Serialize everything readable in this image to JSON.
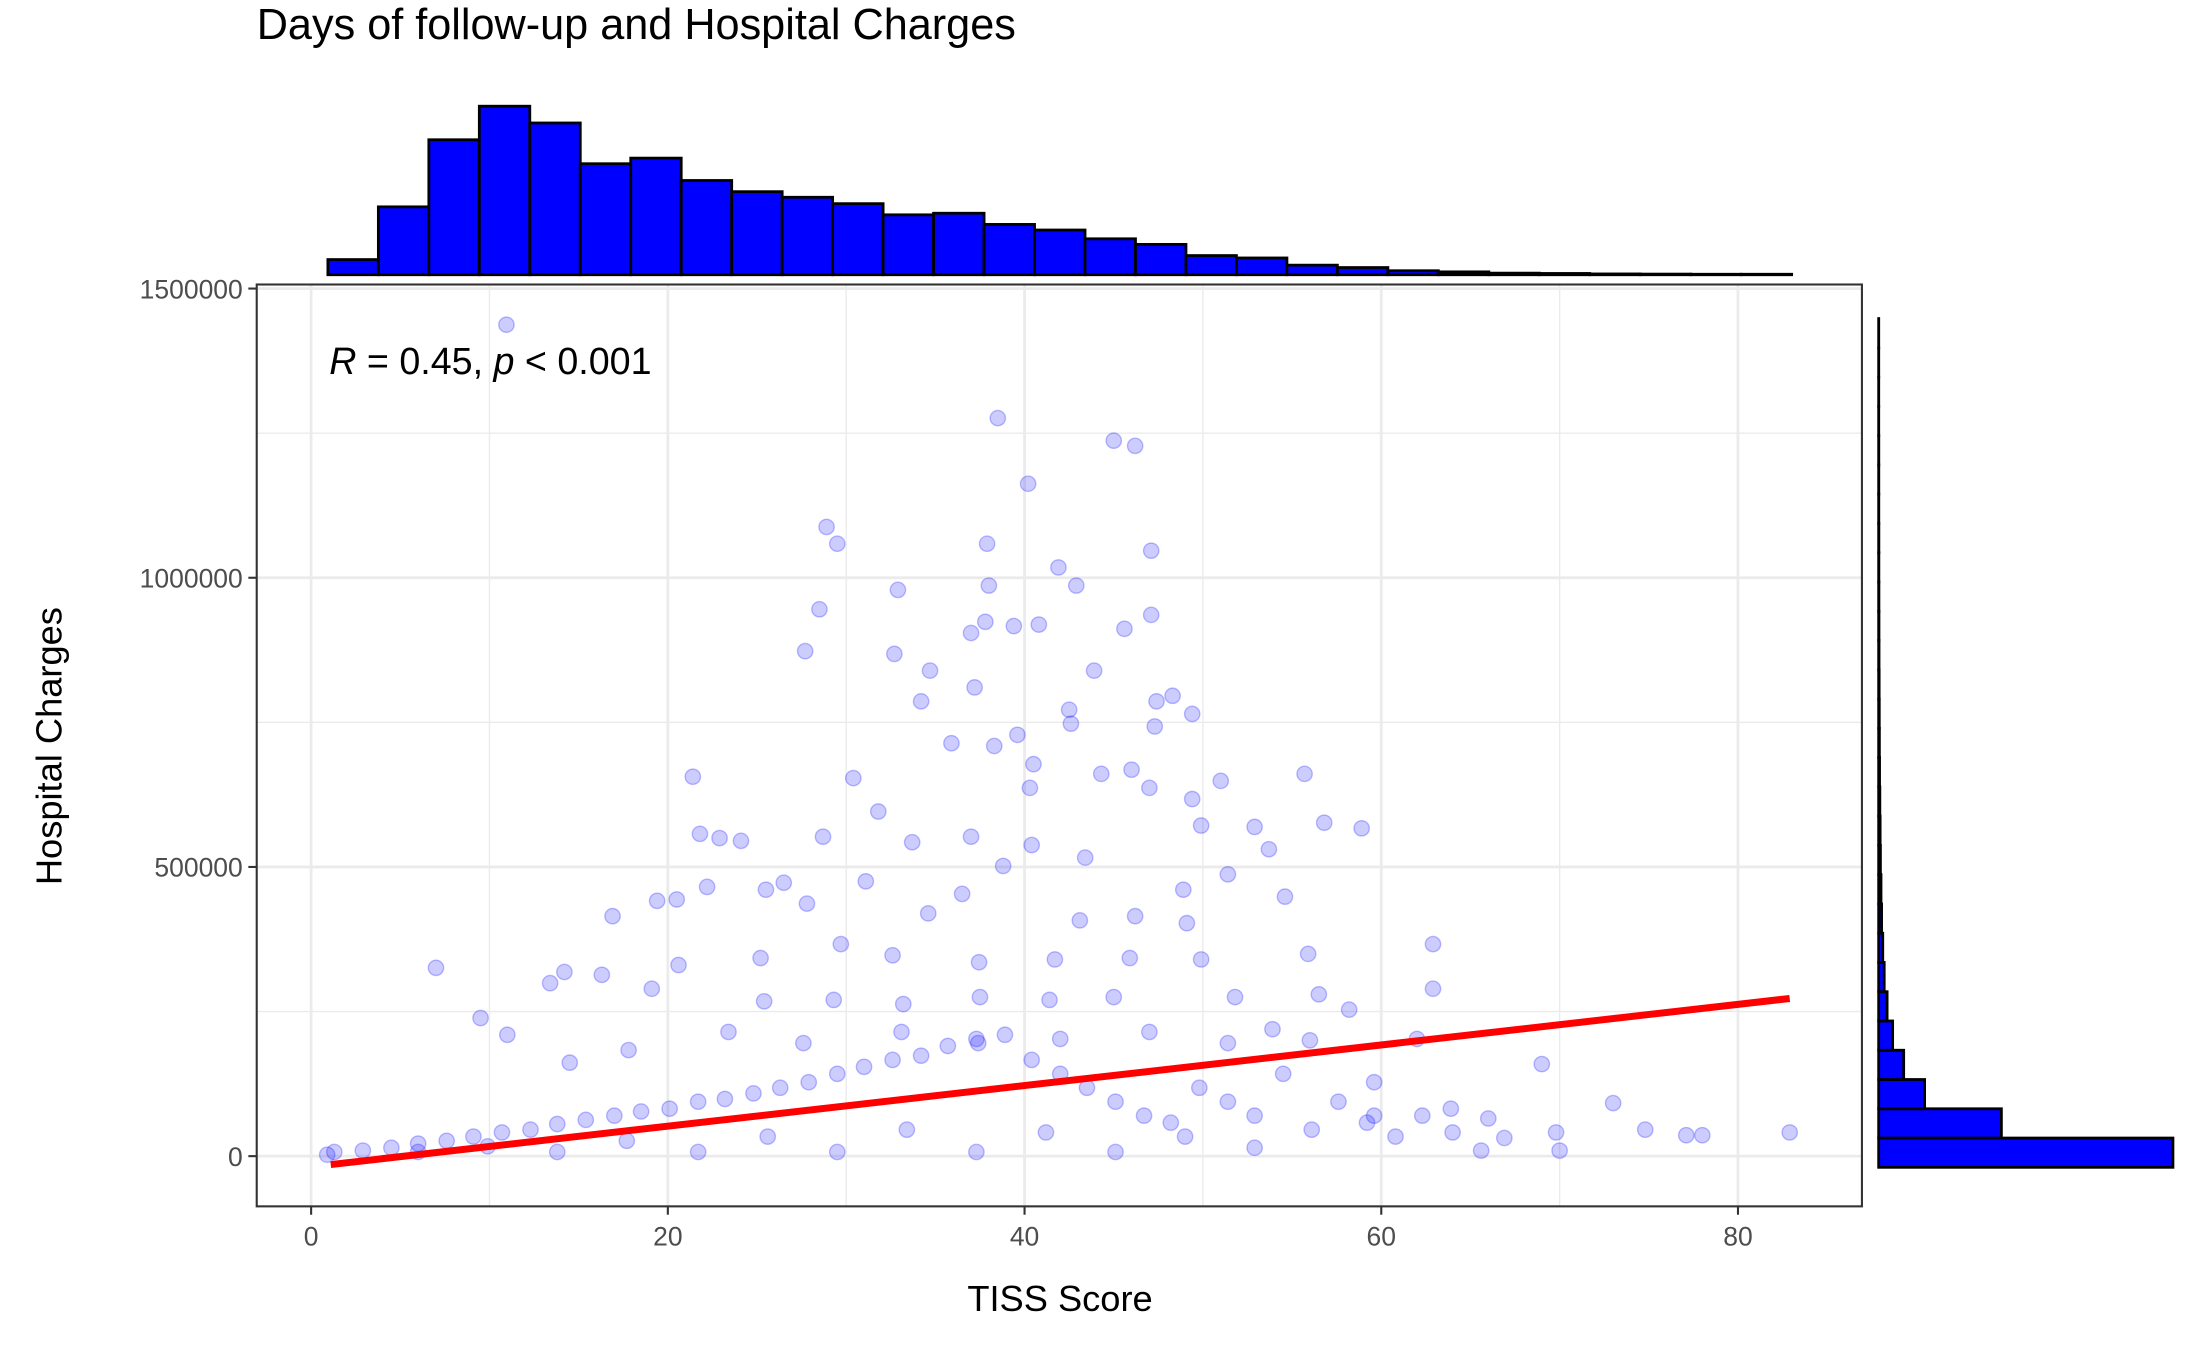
{
  "chart_data": {
    "type": "scatter",
    "title": "Days of follow-up and Hospital Charges",
    "xlabel": "TISS Score",
    "ylabel": "Hospital Charges",
    "annotation": {
      "r_symbol": "R",
      "r_text": " = 0.45, ",
      "p_symbol": "p",
      "p_text": " < 0.001"
    },
    "color": "blue",
    "x": [
      10.95,
      38.5,
      45,
      46.2,
      40.2,
      28.9,
      29.5,
      37.9,
      47.1,
      41.9,
      42.9,
      38,
      32.9,
      28.5,
      47.1,
      37.8,
      40.8,
      39.4,
      45.6,
      37,
      27.7,
      32.7,
      34.7,
      43.9,
      37.2,
      34.2,
      48.3,
      47.4,
      42.5,
      42.6,
      49.4,
      39.6,
      47.3,
      35.9,
      38.3,
      40.5,
      21.4,
      30.4,
      51,
      55.7,
      46,
      44.3,
      40.3,
      47,
      49.4,
      21.8,
      31.8,
      56.8,
      58.9,
      49.9,
      52.9,
      22.9,
      24.1,
      28.7,
      37,
      53.7,
      33.7,
      40.4,
      43.4,
      38.8,
      26.5,
      22.2,
      25.5,
      31.1,
      48.9,
      51.4,
      54.6,
      16.9,
      19.4,
      20.5,
      27.8,
      36.5,
      46.2,
      49.1,
      43.1,
      34.6,
      7,
      9.5,
      14.2,
      16.3,
      20.6,
      25.2,
      29.7,
      32.6,
      37.45,
      41.7,
      45.9,
      49.9,
      55.9,
      62.9,
      62.9,
      19.1,
      13.4,
      25.4,
      29.3,
      33.2,
      37.5,
      41.4,
      45,
      51.8,
      56.5,
      58.2,
      62,
      69,
      73,
      74.8,
      77.1,
      78,
      82.9,
      70,
      69.8,
      64,
      65.6,
      66.9,
      66,
      59.6,
      59.6,
      11,
      14.5,
      17.8,
      23.4,
      27.6,
      33.1,
      37.4,
      42,
      47,
      51.4,
      53.9,
      56,
      1.3,
      2.9,
      4.5,
      6,
      7.6,
      9.1,
      10.7,
      12.3,
      13.8,
      15.4,
      17,
      18.5,
      20.1,
      21.7,
      23.2,
      24.8,
      26.3,
      27.9,
      29.5,
      31,
      32.6,
      34.2,
      35.7,
      37.3,
      38.9,
      40.4,
      42,
      43.5,
      45.1,
      46.7,
      48.2,
      49.8,
      51.4,
      52.9,
      54.5,
      56.1,
      57.6,
      59.2,
      60.8,
      62.3,
      63.9,
      6,
      13.8,
      21.7,
      29.5,
      37.3,
      45.1,
      52.9,
      25.6,
      33.4,
      41.2,
      49,
      17.7,
      9.9,
      0.9
    ],
    "y": [
      1437500,
      1276000,
      1237000,
      1228000,
      1162500,
      1087800,
      1058800,
      1058800,
      1046800,
      1017800,
      986500,
      986500,
      979000,
      945500,
      935800,
      923800,
      919000,
      916500,
      911700,
      904500,
      873100,
      868300,
      839400,
      839400,
      810400,
      786300,
      795900,
      786300,
      771800,
      747700,
      764600,
      728400,
      742900,
      713900,
      709100,
      677700,
      656000,
      653600,
      648800,
      660900,
      668100,
      660900,
      636700,
      636700,
      617400,
      557200,
      595800,
      576500,
      566800,
      571600,
      569200,
      549900,
      545100,
      552300,
      552300,
      530600,
      542700,
      537900,
      516100,
      501700,
      472700,
      465500,
      460700,
      475100,
      460700,
      487200,
      448600,
      414900,
      441400,
      443800,
      436600,
      453400,
      414900,
      402800,
      407600,
      419700,
      325600,
      238800,
      318400,
      313500,
      330400,
      342500,
      366600,
      347300,
      335300,
      340100,
      342500,
      340100,
      349700,
      366600,
      289400,
      289400,
      299100,
      267700,
      270100,
      262900,
      275000,
      270100,
      275000,
      275000,
      279800,
      253300,
      202600,
      159200,
      91700,
      45800,
      36200,
      36200,
      41000,
      9600,
      41000,
      41000,
      9600,
      31400,
      65100,
      127800,
      70000,
      209800,
      161600,
      183300,
      214700,
      195400,
      214700,
      195400,
      202600,
      214700,
      195400,
      219500,
      200200,
      7200,
      9600,
      14500,
      21700,
      26500,
      33800,
      41000,
      45800,
      55500,
      62700,
      70000,
      77200,
      82000,
      94100,
      98900,
      108500,
      118200,
      127800,
      142300,
      154400,
      166400,
      173700,
      190500,
      202600,
      209800,
      166400,
      142300,
      118200,
      94100,
      70000,
      57900,
      118200,
      94100,
      70000,
      142300,
      45800,
      94100,
      57900,
      33800,
      70000,
      82000,
      7200,
      7200,
      7200,
      7200,
      7200,
      7200,
      14500,
      33800,
      45800,
      41000,
      33800,
      26500,
      16900,
      2400
    ],
    "xlim": [
      -3.05,
      86.95
    ],
    "ylim": [
      -86800,
      1507000
    ],
    "xticks": [
      0,
      20,
      40,
      60,
      80
    ],
    "yticks": [
      0,
      500000,
      1000000,
      1500000
    ],
    "grid": true,
    "trend": {
      "color": "red",
      "x": [
        1.1,
        82.9
      ],
      "y": [
        -14500,
        272600
      ]
    },
    "histogram_color": "blue",
    "x_histogram": {
      "bins": [
        0.94,
        3.77,
        6.6,
        9.43,
        12.26,
        15.09,
        17.92,
        20.75,
        23.58,
        26.41,
        29.24,
        32.07,
        34.9,
        37.73,
        40.56,
        43.39,
        46.22,
        49.05,
        51.88,
        54.71,
        57.54,
        60.37,
        63.2,
        66.03,
        68.86,
        71.69,
        74.52,
        77.35,
        80.18,
        83.01
      ],
      "counts": [
        95,
        425,
        845,
        1055,
        950,
        695,
        730,
        590,
        520,
        485,
        445,
        375,
        385,
        315,
        280,
        225,
        190,
        120,
        105,
        60,
        45,
        25,
        18,
        10,
        8,
        5,
        4,
        3,
        3
      ],
      "ylim": [
        0,
        1100
      ]
    },
    "y_histogram": {
      "bins": [
        -19300,
        31300,
        81900,
        132500,
        183100,
        233700,
        284300,
        334900,
        385500,
        436100,
        486700,
        537300,
        587900,
        638500,
        689100,
        739700,
        790300,
        840900,
        891500,
        942100,
        992700,
        1043300,
        1093900,
        1144500,
        1195100,
        1245700,
        1296300,
        1346900,
        1397500,
        1448100
      ],
      "counts": [
        5060,
        2110,
        790,
        430,
        240,
        145,
        95,
        70,
        50,
        40,
        30,
        25,
        20,
        15,
        12,
        10,
        8,
        6,
        5,
        4,
        3,
        3,
        2,
        2,
        2,
        1,
        1,
        1,
        1
      ],
      "xlim": [
        0,
        5300
      ]
    }
  }
}
